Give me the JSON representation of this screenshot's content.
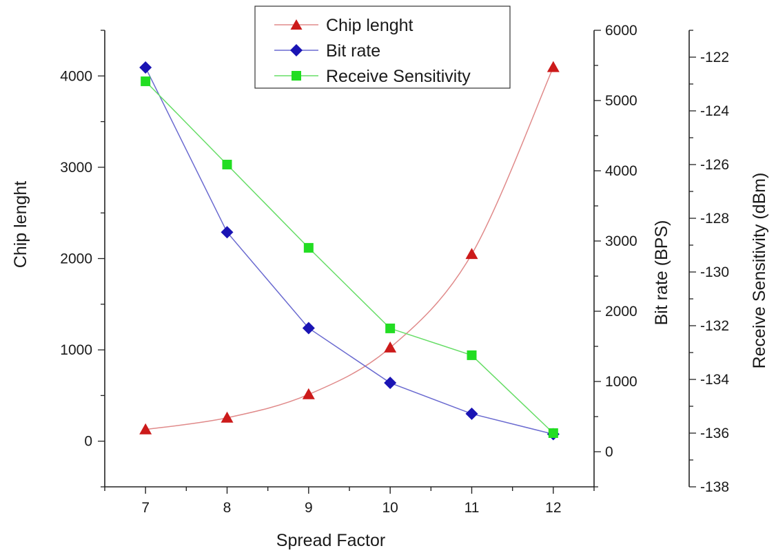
{
  "chart_data": {
    "type": "line",
    "xlabel": "Spread Factor",
    "x": [
      7,
      8,
      9,
      10,
      11,
      12
    ],
    "x_ticks": [
      "7",
      "8",
      "9",
      "10",
      "11",
      "12"
    ],
    "xlim": [
      6.5,
      12.5
    ],
    "axes": {
      "y1": {
        "label": "Chip lenght",
        "ylim": [
          -500,
          4500
        ],
        "ticks": [
          0,
          1000,
          2000,
          3000,
          4000
        ],
        "tick_labels": [
          "0",
          "1000",
          "2000",
          "3000",
          "4000"
        ]
      },
      "y2": {
        "label": "Bit rate (BPS)",
        "ylim": [
          -500,
          6000
        ],
        "ticks": [
          0,
          1000,
          2000,
          3000,
          4000,
          5000,
          6000
        ],
        "tick_labels": [
          "0",
          "1000",
          "2000",
          "3000",
          "4000",
          "5000",
          "6000"
        ]
      },
      "y3": {
        "label": "Receive Sensitivity (dBm)",
        "ylim": [
          -138,
          -121
        ],
        "ticks": [
          -138,
          -136,
          -134,
          -132,
          -130,
          -128,
          -126,
          -124,
          -122
        ],
        "tick_labels": [
          "-138",
          "-136",
          "-134",
          "-132",
          "-130",
          "-128",
          "-126",
          "-124",
          "-122"
        ]
      }
    },
    "series": [
      {
        "name": "Chip lenght",
        "axis": "y1",
        "values": [
          128,
          256,
          512,
          1024,
          2048,
          4096
        ],
        "color": "#cc1a1a",
        "line_color": "#e08a8a",
        "marker": "triangle"
      },
      {
        "name": "Bit rate",
        "axis": "y2",
        "values": [
          5470,
          3125,
          1760,
          980,
          540,
          250
        ],
        "color": "#1a14b4",
        "line_color": "#6a6ad0",
        "marker": "diamond"
      },
      {
        "name": "Receive Sensitivity",
        "axis": "y3",
        "values": [
          -122.9,
          -126.0,
          -129.1,
          -132.1,
          -133.1,
          -136.0
        ],
        "color": "#22dd22",
        "line_color": "#66dd66",
        "marker": "square"
      }
    ],
    "legend": {
      "position": "top-center"
    },
    "grid": false
  }
}
